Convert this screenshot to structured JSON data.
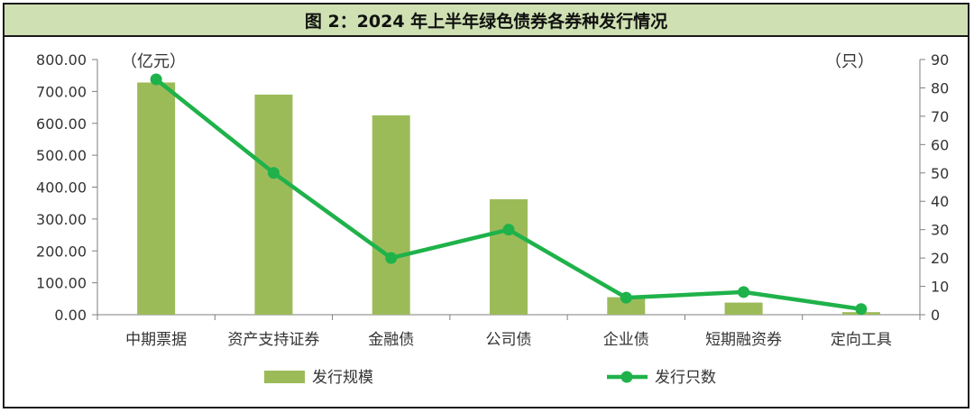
{
  "chart_data": {
    "type": "bar+line",
    "title": "图 2：2024 年上半年绿色债券各券种发行情况",
    "categories": [
      "中期票据",
      "资产支持证券",
      "金融债",
      "公司债",
      "企业债",
      "短期融资券",
      "定向工具"
    ],
    "series": [
      {
        "name": "发行规模",
        "type": "bar",
        "axis": "left",
        "color": "#9bbb59",
        "values": [
          728,
          690,
          625,
          362,
          55,
          38,
          8
        ]
      },
      {
        "name": "发行只数",
        "type": "line",
        "axis": "right",
        "color": "#1fb24a",
        "values": [
          83,
          50,
          20,
          30,
          6,
          8,
          2
        ]
      }
    ],
    "left_axis": {
      "unit": "（亿元）",
      "ylim": [
        0,
        800
      ],
      "ticks": [
        "0.00",
        "100.00",
        "200.00",
        "300.00",
        "400.00",
        "500.00",
        "600.00",
        "700.00",
        "800.00"
      ]
    },
    "right_axis": {
      "unit": "（只）",
      "ylim": [
        0,
        90
      ],
      "ticks": [
        "0",
        "10",
        "20",
        "30",
        "40",
        "50",
        "60",
        "70",
        "80",
        "90"
      ]
    },
    "legend_position": "bottom",
    "grid": false
  }
}
